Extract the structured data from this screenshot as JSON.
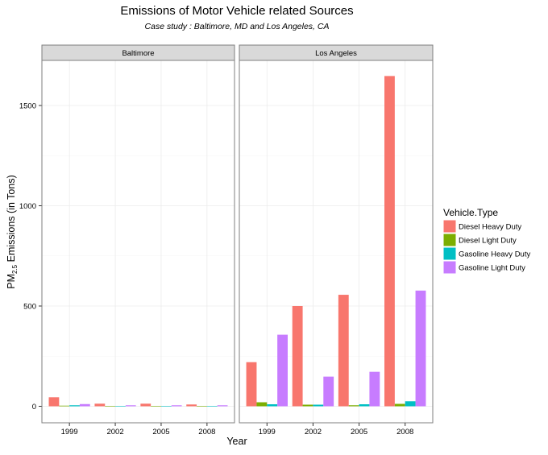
{
  "chart_data": {
    "type": "bar",
    "title": "Emissions of Motor Vehicle related Sources",
    "subtitle": "Case study : Baltimore, MD and Los Angeles, CA",
    "xlabel": "Year",
    "ylabel": {
      "prefix": "PM",
      "subscript": "2.5",
      "suffix": " Emissions (in Tons)"
    },
    "ylim": [
      0,
      1720
    ],
    "yticks": [
      0,
      500,
      1000,
      1500
    ],
    "categories": [
      "1999",
      "2002",
      "2005",
      "2008"
    ],
    "grid": true,
    "legend": {
      "title": "Vehicle.Type",
      "position": "right"
    },
    "series": [
      {
        "name": "Diesel Heavy Duty",
        "color": "#f8766d"
      },
      {
        "name": "Diesel Light Duty",
        "color": "#7cae00"
      },
      {
        "name": "Gasoline Heavy Duty",
        "color": "#00bfc4"
      },
      {
        "name": "Gasoline Light Duty",
        "color": "#c77cff"
      }
    ],
    "panels": [
      {
        "label": "Baltimore",
        "values": [
          [
            45,
            13,
            13,
            9
          ],
          [
            3,
            1,
            1,
            1
          ],
          [
            5,
            1,
            1,
            1
          ],
          [
            11,
            5,
            5,
            5
          ]
        ]
      },
      {
        "label": "Los Angeles",
        "values": [
          [
            220,
            500,
            556,
            1647
          ],
          [
            20,
            8,
            5,
            12
          ],
          [
            10,
            8,
            10,
            25
          ],
          [
            357,
            148,
            172,
            577
          ]
        ]
      }
    ]
  }
}
